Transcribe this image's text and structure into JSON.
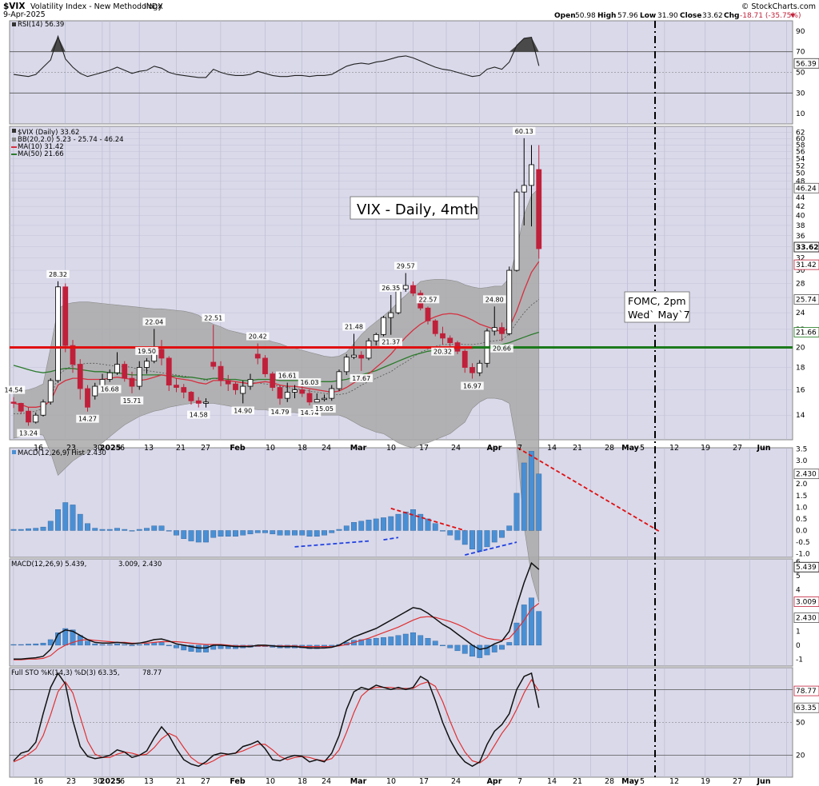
{
  "header": {
    "symbol": "$VIX",
    "name": "Volatility Index - New Methodology",
    "exchange": "INDX",
    "date": "9-Apr-2025",
    "watermark": "© StockCharts.com",
    "open_label": "Open",
    "open": "50.98",
    "high_label": "High",
    "high": "57.96",
    "low_label": "Low",
    "low": "31.90",
    "close_label": "Close",
    "close": "33.62",
    "chg_label": "Chg",
    "chg": "-18.71 (-35.75%)"
  },
  "panels": {
    "rsi": {
      "title": "RSI(14) 56.39",
      "last": "56.39",
      "ticks": [
        "90",
        "70",
        "50",
        "30",
        "10"
      ]
    },
    "price": {
      "title": "$VIX (Daily) 33.62",
      "bb": "BB(20,2.0) 5.23 - 25.74 - 46.24",
      "ma10": "MA(10) 31.42",
      "ma50": "MA(50) 21.66",
      "ticks": [
        "62",
        "60",
        "58",
        "56",
        "54",
        "52",
        "50",
        "48",
        "46",
        "44",
        "42",
        "40",
        "38",
        "36",
        "34",
        "32",
        "30",
        "28",
        "26",
        "24",
        "22",
        "20",
        "18",
        "16",
        "14"
      ],
      "callouts": [
        {
          "text": "33.62",
          "bg": "#ffffff",
          "fg": "#000000"
        },
        {
          "text": "46.24",
          "bg": "#ffffff",
          "fg": "#555555"
        },
        {
          "text": "31.42",
          "bg": "#ffffff",
          "fg": "#c0203a"
        },
        {
          "text": "25.74",
          "bg": "#ffffff",
          "fg": "#555555"
        },
        {
          "text": "21.66",
          "bg": "#ffffff",
          "fg": "#1c7a1c"
        }
      ]
    },
    "hist": {
      "title": "MACD(12,26,9) Hist 2.430",
      "last": "2.430",
      "ticks": [
        "3.5",
        "3.0",
        "2.5",
        "2.0",
        "1.5",
        "1.0",
        "0.5",
        "0.0",
        "-0.5",
        "-1.0"
      ]
    },
    "macd": {
      "title_prefix": "MACD(12,26,9) 5.439, ",
      "signal": "3.009",
      "sep": ", ",
      "hist": "2.430",
      "ticks": [
        "6",
        "5",
        "4",
        "3",
        "2",
        "1",
        "0",
        "-1"
      ],
      "callouts": [
        "5.439",
        "3.009",
        "2.430"
      ]
    },
    "sto": {
      "title_prefix": "Full STO %K(14,3) %D(3) 63.35, ",
      "d": "78.77",
      "ticks": [
        "50",
        "20"
      ],
      "callouts": [
        "78.77",
        "63.35"
      ]
    }
  },
  "annotations": {
    "big_label": "VIX - Daily, 4mth",
    "fomc_line1": "FOMC, 2pm",
    "fomc_line2": "Wed` May`7"
  },
  "x_labels": [
    "16",
    "23",
    "30",
    "2025",
    "6",
    "13",
    "21",
    "27",
    "Feb",
    "10",
    "18",
    "24",
    "Mar",
    "10",
    "17",
    "24",
    "Apr",
    "7",
    "14",
    "21",
    "28",
    "May",
    "5",
    "12",
    "19",
    "27",
    "Jun"
  ],
  "colors": {
    "panel_bg": "#d9d9ea",
    "up_candle": "#ffffff",
    "down_candle": "#c0203a",
    "bb_fill": "#a9a9a9",
    "ma10": "#d62f3f",
    "ma50": "#2b7a2b",
    "hline_red": "#e01010",
    "hline_green": "#1c7a1c",
    "hist_bar": "#4a8fd3",
    "trend_red": "#e01010",
    "trend_blue": "#1f3fe0"
  },
  "chart_data": {
    "type": "candlestick",
    "title": "$VIX (Daily) 33.62",
    "candle_labels": [
      "14.54",
      "13.24",
      "28.32",
      "14.27",
      "16.68",
      "15.71",
      "19.50",
      "22.04",
      "14.58",
      "22.51",
      "14.90",
      "20.42",
      "16.61",
      "14.79",
      "16.03",
      "14.74",
      "15.05",
      "21.48",
      "17.67",
      "26.35",
      "21.37",
      "29.57",
      "22.57",
      "20.32",
      "16.97",
      "24.80",
      "20.66",
      "60.13"
    ],
    "ohlc": [
      [
        15.0,
        15.4,
        14.54,
        14.9
      ],
      [
        14.9,
        14.95,
        14.1,
        14.3
      ],
      [
        14.3,
        14.6,
        13.24,
        13.5
      ],
      [
        13.5,
        14.2,
        13.4,
        14.0
      ],
      [
        14.0,
        15.2,
        13.9,
        15.0
      ],
      [
        15.0,
        17.0,
        14.8,
        16.8
      ],
      [
        16.8,
        28.32,
        16.6,
        27.5
      ],
      [
        27.5,
        28.0,
        19.5,
        20.2
      ],
      [
        20.2,
        20.8,
        17.5,
        18.3
      ],
      [
        18.3,
        18.8,
        15.2,
        16.1
      ],
      [
        16.1,
        16.4,
        14.27,
        14.6
      ],
      [
        15.5,
        16.6,
        15.2,
        16.3
      ],
      [
        16.3,
        17.4,
        16.0,
        16.9
      ],
      [
        16.9,
        17.8,
        16.68,
        17.5
      ],
      [
        17.5,
        19.5,
        17.3,
        18.3
      ],
      [
        18.3,
        18.6,
        16.7,
        17.0
      ],
      [
        17.0,
        17.6,
        15.71,
        16.3
      ],
      [
        16.3,
        18.6,
        16.0,
        18.0
      ],
      [
        18.0,
        18.9,
        17.4,
        18.6
      ],
      [
        18.6,
        22.04,
        18.4,
        19.8
      ],
      [
        19.8,
        20.8,
        18.2,
        18.9
      ],
      [
        18.9,
        19.1,
        15.9,
        16.4
      ],
      [
        16.4,
        17.0,
        15.8,
        16.2
      ],
      [
        16.2,
        16.5,
        15.3,
        15.8
      ],
      [
        15.8,
        15.9,
        14.8,
        15.1
      ],
      [
        15.1,
        15.4,
        14.58,
        14.9
      ],
      [
        14.9,
        15.3,
        14.58,
        15.0
      ],
      [
        18.5,
        22.51,
        17.8,
        18.1
      ],
      [
        18.1,
        18.6,
        16.3,
        16.8
      ],
      [
        16.8,
        17.3,
        15.9,
        16.5
      ],
      [
        16.5,
        16.7,
        15.6,
        16.0
      ],
      [
        15.7,
        16.8,
        14.9,
        16.3
      ],
      [
        16.3,
        17.4,
        16.0,
        16.9
      ],
      [
        19.3,
        20.42,
        18.3,
        18.9
      ],
      [
        18.9,
        19.2,
        17.1,
        17.4
      ],
      [
        17.4,
        17.6,
        15.9,
        16.2
      ],
      [
        16.2,
        16.4,
        14.79,
        15.3
      ],
      [
        15.3,
        16.61,
        15.0,
        15.8
      ],
      [
        15.8,
        16.4,
        15.3,
        16.0
      ],
      [
        16.0,
        16.3,
        15.4,
        15.7
      ],
      [
        15.7,
        16.03,
        14.74,
        15.0
      ],
      [
        15.0,
        15.7,
        15.0,
        15.2
      ],
      [
        15.2,
        15.6,
        15.05,
        15.3
      ],
      [
        15.3,
        16.4,
        15.1,
        16.1
      ],
      [
        16.1,
        17.8,
        15.9,
        17.6
      ],
      [
        17.6,
        19.3,
        17.3,
        19.0
      ],
      [
        19.0,
        21.48,
        18.8,
        19.2
      ],
      [
        19.2,
        19.6,
        17.67,
        18.9
      ],
      [
        18.9,
        21.0,
        18.7,
        20.7
      ],
      [
        20.7,
        21.6,
        20.2,
        21.4
      ],
      [
        21.4,
        23.6,
        21.2,
        23.4
      ],
      [
        23.4,
        26.35,
        21.37,
        24.0
      ],
      [
        24.0,
        27.8,
        23.8,
        27.2
      ],
      [
        27.2,
        29.57,
        26.8,
        27.7
      ],
      [
        27.7,
        28.3,
        26.2,
        26.6
      ],
      [
        26.6,
        27.0,
        24.3,
        24.6
      ],
      [
        24.6,
        24.8,
        22.57,
        23.0
      ],
      [
        23.0,
        23.2,
        21.2,
        21.5
      ],
      [
        21.5,
        22.3,
        20.32,
        21.0
      ],
      [
        21.0,
        21.3,
        20.1,
        20.5
      ],
      [
        20.5,
        20.7,
        19.3,
        19.6
      ],
      [
        19.6,
        19.8,
        17.5,
        18.0
      ],
      [
        18.0,
        18.4,
        16.97,
        17.5
      ],
      [
        17.5,
        18.7,
        17.2,
        18.4
      ],
      [
        18.4,
        22.1,
        18.0,
        21.8
      ],
      [
        21.8,
        24.8,
        21.3,
        22.2
      ],
      [
        22.2,
        22.8,
        20.66,
        21.5
      ],
      [
        21.5,
        30.6,
        21.3,
        30.0
      ],
      [
        30.0,
        46.0,
        29.8,
        45.3
      ],
      [
        45.3,
        60.13,
        38.0,
        46.9
      ],
      [
        46.9,
        57.96,
        37.8,
        52.3
      ],
      [
        50.98,
        57.96,
        31.9,
        33.62
      ]
    ],
    "bb_upper": [
      15.8,
      15.9,
      16.0,
      16.2,
      16.5,
      20.0,
      24.5,
      25.1,
      25.3,
      25.4,
      25.4,
      25.3,
      25.2,
      25.1,
      25.0,
      24.9,
      24.8,
      24.7,
      24.6,
      24.5,
      24.5,
      24.4,
      24.3,
      24.2,
      24.0,
      23.7,
      23.0,
      22.6,
      22.3,
      21.9,
      21.7,
      21.5,
      21.3,
      21.1,
      20.9,
      20.6,
      20.4,
      20.1,
      19.9,
      19.7,
      19.5,
      19.3,
      19.1,
      19.0,
      19.1,
      19.5,
      20.4,
      21.4,
      22.2,
      22.9,
      23.6,
      24.4,
      25.4,
      26.3,
      27.3,
      28.3,
      28.5,
      28.6,
      28.6,
      28.5,
      28.3,
      27.8,
      27.5,
      27.3,
      27.4,
      27.6,
      27.6,
      28.8,
      33.5,
      40.2,
      44.5,
      46.24
    ],
    "bb_lower": [
      12.4,
      12.5,
      12.6,
      12.7,
      12.6,
      11.5,
      10.2,
      10.6,
      11.0,
      11.3,
      11.5,
      11.8,
      12.1,
      12.5,
      12.9,
      13.3,
      13.6,
      13.9,
      14.1,
      14.3,
      14.4,
      14.6,
      14.7,
      14.8,
      14.9,
      15.0,
      14.9,
      14.9,
      14.8,
      14.7,
      14.6,
      14.6,
      14.5,
      14.4,
      14.4,
      14.3,
      14.3,
      14.2,
      14.2,
      14.1,
      14.1,
      14.0,
      14.0,
      14.0,
      14.0,
      13.8,
      13.5,
      13.2,
      13.0,
      12.8,
      12.7,
      12.4,
      12.1,
      11.9,
      11.8,
      12.0,
      12.1,
      12.3,
      12.5,
      12.7,
      13.1,
      13.5,
      14.5,
      15.0,
      15.3,
      15.3,
      15.2,
      14.9,
      12.0,
      7.8,
      6.0,
      5.23
    ],
    "ma10": [
      14.9,
      14.8,
      14.6,
      14.6,
      14.7,
      15.1,
      16.4,
      16.8,
      17.0,
      17.0,
      16.9,
      16.9,
      16.9,
      17.0,
      17.1,
      17.0,
      16.9,
      16.8,
      16.9,
      17.1,
      17.3,
      17.2,
      17.0,
      16.9,
      16.8,
      16.6,
      16.5,
      16.8,
      16.8,
      16.8,
      16.7,
      16.6,
      16.5,
      16.6,
      16.7,
      16.6,
      16.4,
      16.3,
      16.3,
      16.2,
      16.1,
      16.0,
      15.9,
      15.8,
      15.9,
      16.2,
      16.6,
      17.0,
      17.4,
      18.0,
      18.6,
      19.3,
      20.2,
      21.1,
      21.9,
      22.6,
      23.1,
      23.5,
      23.8,
      23.9,
      23.8,
      23.5,
      23.1,
      22.6,
      22.3,
      22.0,
      21.7,
      22.2,
      24.2,
      27.0,
      29.7,
      31.42
    ],
    "ma_mid": [
      14.1,
      14.1,
      14.2,
      14.3,
      14.5,
      15.2,
      17.3,
      17.8,
      18.2,
      18.3,
      18.4,
      18.4,
      18.3,
      18.2,
      18.1,
      18.1,
      18.0,
      17.8,
      17.7,
      17.6,
      17.5,
      17.4,
      17.3,
      17.2,
      17.1,
      17.0,
      16.8,
      17.0,
      16.9,
      16.8,
      16.7,
      16.6,
      16.6,
      16.6,
      16.5,
      16.4,
      16.3,
      16.2,
      16.1,
      16.0,
      15.9,
      15.8,
      15.7,
      15.6,
      15.6,
      15.7,
      16.0,
      16.4,
      16.7,
      17.0,
      17.3,
      17.6,
      18.1,
      18.5,
      19.0,
      19.5,
      19.8,
      20.1,
      20.3,
      20.3,
      20.4,
      20.3,
      20.3,
      20.4,
      20.6,
      20.7,
      20.8,
      21.5,
      22.8,
      24.0,
      25.0,
      25.74
    ],
    "ma50": [
      18.2,
      18.0,
      17.8,
      17.6,
      17.5,
      17.6,
      17.8,
      17.9,
      17.9,
      17.8,
      17.7,
      17.6,
      17.6,
      17.5,
      17.5,
      17.4,
      17.3,
      17.3,
      17.3,
      17.3,
      17.3,
      17.2,
      17.2,
      17.1,
      17.1,
      17.0,
      16.9,
      17.0,
      17.0,
      16.9,
      16.9,
      16.8,
      16.8,
      16.9,
      16.9,
      16.9,
      16.8,
      16.8,
      16.8,
      16.8,
      16.8,
      16.7,
      16.7,
      16.7,
      16.8,
      16.9,
      17.1,
      17.3,
      17.5,
      17.7,
      18.0,
      18.3,
      18.6,
      18.9,
      19.2,
      19.4,
      19.6,
      19.7,
      19.8,
      19.8,
      19.9,
      19.9,
      19.9,
      20.0,
      20.1,
      20.2,
      20.3,
      20.5,
      20.8,
      21.1,
      21.4,
      21.66
    ],
    "rsi": [
      48,
      47,
      46,
      48,
      55,
      62,
      85,
      63,
      55,
      49,
      46,
      48,
      50,
      52,
      55,
      52,
      49,
      51,
      52,
      56,
      54,
      50,
      48,
      47,
      46,
      45,
      45,
      53,
      50,
      48,
      47,
      47,
      48,
      51,
      49,
      47,
      46,
      46,
      47,
      47,
      46,
      47,
      47,
      48,
      52,
      56,
      58,
      59,
      58,
      60,
      61,
      63,
      65,
      66,
      64,
      61,
      58,
      55,
      53,
      52,
      50,
      48,
      46,
      47,
      53,
      55,
      53,
      60,
      76,
      83,
      84,
      56.39
    ],
    "macd_hist": [
      0.05,
      0.05,
      0.08,
      0.1,
      0.15,
      0.4,
      0.9,
      1.2,
      1.1,
      0.7,
      0.3,
      0.1,
      0.05,
      0.05,
      0.1,
      0.05,
      0.0,
      0.05,
      0.1,
      0.2,
      0.2,
      0.0,
      -0.2,
      -0.35,
      -0.45,
      -0.5,
      -0.5,
      -0.3,
      -0.25,
      -0.25,
      -0.25,
      -0.2,
      -0.15,
      -0.1,
      -0.1,
      -0.15,
      -0.2,
      -0.2,
      -0.2,
      -0.2,
      -0.25,
      -0.25,
      -0.2,
      -0.1,
      0.05,
      0.2,
      0.35,
      0.4,
      0.45,
      0.5,
      0.55,
      0.6,
      0.7,
      0.8,
      0.9,
      0.7,
      0.5,
      0.3,
      0.0,
      -0.2,
      -0.4,
      -0.6,
      -0.8,
      -0.9,
      -0.7,
      -0.5,
      -0.3,
      0.2,
      1.6,
      2.9,
      3.4,
      2.43
    ],
    "macd_line": [
      -1.0,
      -1.0,
      -0.95,
      -0.9,
      -0.8,
      -0.3,
      0.8,
      1.1,
      1.0,
      0.7,
      0.4,
      0.2,
      0.15,
      0.15,
      0.2,
      0.15,
      0.1,
      0.15,
      0.25,
      0.4,
      0.45,
      0.3,
      0.1,
      0.0,
      -0.1,
      -0.2,
      -0.2,
      0.0,
      0.0,
      -0.05,
      -0.1,
      -0.1,
      -0.1,
      0.0,
      0.0,
      -0.05,
      -0.1,
      -0.1,
      -0.1,
      -0.15,
      -0.2,
      -0.2,
      -0.2,
      -0.15,
      0.0,
      0.3,
      0.6,
      0.8,
      1.0,
      1.2,
      1.5,
      1.8,
      2.1,
      2.4,
      2.7,
      2.6,
      2.3,
      1.9,
      1.5,
      1.2,
      0.8,
      0.4,
      0.0,
      -0.3,
      -0.2,
      0.1,
      0.3,
      1.0,
      2.8,
      4.5,
      5.9,
      5.439
    ],
    "macd_signal": [
      -1.05,
      -1.05,
      -1.0,
      -1.0,
      -0.95,
      -0.75,
      -0.3,
      0.0,
      0.2,
      0.35,
      0.4,
      0.35,
      0.3,
      0.25,
      0.2,
      0.2,
      0.15,
      0.15,
      0.15,
      0.2,
      0.25,
      0.25,
      0.25,
      0.2,
      0.15,
      0.1,
      0.05,
      0.05,
      0.05,
      0.0,
      -0.05,
      -0.05,
      -0.05,
      -0.05,
      -0.05,
      -0.05,
      -0.05,
      -0.05,
      -0.05,
      -0.1,
      -0.1,
      -0.1,
      -0.1,
      -0.1,
      -0.05,
      0.05,
      0.2,
      0.35,
      0.5,
      0.7,
      0.9,
      1.1,
      1.3,
      1.55,
      1.8,
      2.0,
      2.05,
      2.0,
      1.85,
      1.7,
      1.5,
      1.25,
      0.95,
      0.7,
      0.5,
      0.4,
      0.35,
      0.5,
      1.1,
      1.8,
      2.6,
      3.009
    ],
    "sto_k": [
      15,
      22,
      24,
      32,
      58,
      82,
      95,
      85,
      52,
      28,
      19,
      17,
      18,
      20,
      25,
      23,
      18,
      20,
      24,
      36,
      46,
      38,
      26,
      16,
      12,
      10,
      14,
      20,
      22,
      21,
      22,
      28,
      30,
      33,
      26,
      16,
      15,
      18,
      20,
      19,
      14,
      16,
      14,
      22,
      38,
      62,
      78,
      82,
      80,
      84,
      82,
      80,
      82,
      80,
      82,
      92,
      88,
      70,
      50,
      34,
      22,
      14,
      10,
      14,
      30,
      42,
      48,
      58,
      80,
      92,
      95,
      63.35
    ],
    "sto_d": [
      14,
      17,
      21,
      26,
      38,
      57,
      78,
      87,
      77,
      55,
      33,
      21,
      18,
      18,
      21,
      23,
      22,
      20,
      21,
      27,
      35,
      40,
      37,
      27,
      18,
      13,
      12,
      15,
      19,
      21,
      22,
      24,
      27,
      30,
      30,
      25,
      19,
      16,
      18,
      19,
      18,
      16,
      15,
      17,
      25,
      41,
      59,
      74,
      80,
      82,
      82,
      82,
      81,
      81,
      81,
      85,
      87,
      83,
      69,
      51,
      35,
      23,
      15,
      13,
      18,
      29,
      40,
      49,
      62,
      77,
      89,
      78.77
    ],
    "reference_lines": {
      "price": [
        20
      ],
      "rsi": [
        70,
        30
      ],
      "sto": [
        80,
        20
      ]
    }
  }
}
